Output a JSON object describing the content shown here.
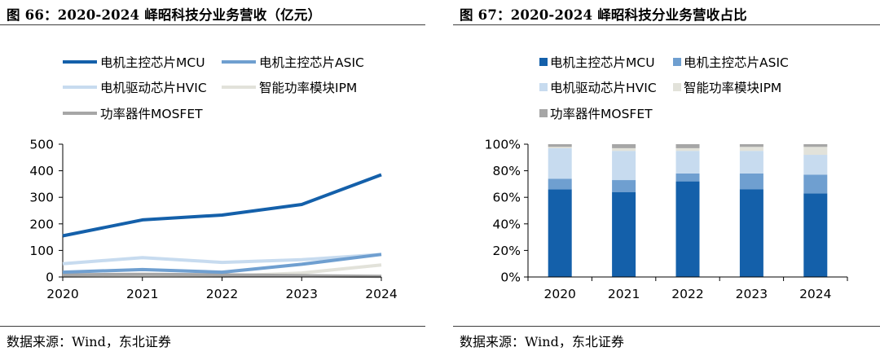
{
  "colors": {
    "mcu": "#1460AA",
    "asic": "#6F9FD0",
    "hvic": "#C7DBEF",
    "ipm": "#E2E2DA",
    "mosfet": "#A6A6A6"
  },
  "left": {
    "title": "图 66：2020-2024 峄昭科技分业务营收（亿元）",
    "source": "数据来源：Wind，东北证券"
  },
  "right": {
    "title": "图 67：2020-2024 峄昭科技分业务营收占比",
    "source": "数据来源：Wind，东北证券"
  },
  "chart_data": [
    {
      "type": "line",
      "title": "",
      "xlabel": "",
      "ylabel": "",
      "x": [
        "2020",
        "2021",
        "2022",
        "2023",
        "2024"
      ],
      "ylim": [
        0,
        500
      ],
      "yticks": [
        "0",
        "100",
        "200",
        "300",
        "400",
        "500"
      ],
      "grid": false,
      "legend_position": "top",
      "series": [
        {
          "name": "电机主控芯片MCU",
          "key": "mcu",
          "values": [
            155,
            215,
            233,
            273,
            385
          ]
        },
        {
          "name": "电机主控芯片ASIC",
          "key": "asic",
          "values": [
            18,
            28,
            18,
            48,
            85
          ]
        },
        {
          "name": "电机驱动芯片HVIC",
          "key": "hvic",
          "values": [
            50,
            73,
            55,
            65,
            85
          ]
        },
        {
          "name": "智能功率模块IPM",
          "key": "ipm",
          "values": [
            3,
            5,
            3,
            15,
            45
          ]
        },
        {
          "name": "功率器件MOSFET",
          "key": "mosfet",
          "values": [
            8,
            10,
            8,
            5,
            2
          ]
        }
      ]
    },
    {
      "type": "bar",
      "stacked": true,
      "percent": true,
      "title": "",
      "xlabel": "",
      "ylabel": "",
      "categories": [
        "2020",
        "2021",
        "2022",
        "2023",
        "2024"
      ],
      "ylim": [
        0,
        100
      ],
      "yticks": [
        "0%",
        "20%",
        "40%",
        "60%",
        "80%",
        "100%"
      ],
      "grid": false,
      "legend_position": "top",
      "series": [
        {
          "name": "电机主控芯片MCU",
          "key": "mcu",
          "values": [
            66,
            64,
            72,
            66,
            63
          ]
        },
        {
          "name": "电机主控芯片ASIC",
          "key": "asic",
          "values": [
            8,
            9,
            6,
            12,
            14
          ]
        },
        {
          "name": "电机驱动芯片HVIC",
          "key": "hvic",
          "values": [
            23,
            22,
            17,
            17,
            15
          ]
        },
        {
          "name": "智能功率模块IPM",
          "key": "ipm",
          "values": [
            1,
            2,
            2,
            3,
            6
          ]
        },
        {
          "name": "功率器件MOSFET",
          "key": "mosfet",
          "values": [
            2,
            3,
            3,
            2,
            2
          ]
        }
      ]
    }
  ]
}
